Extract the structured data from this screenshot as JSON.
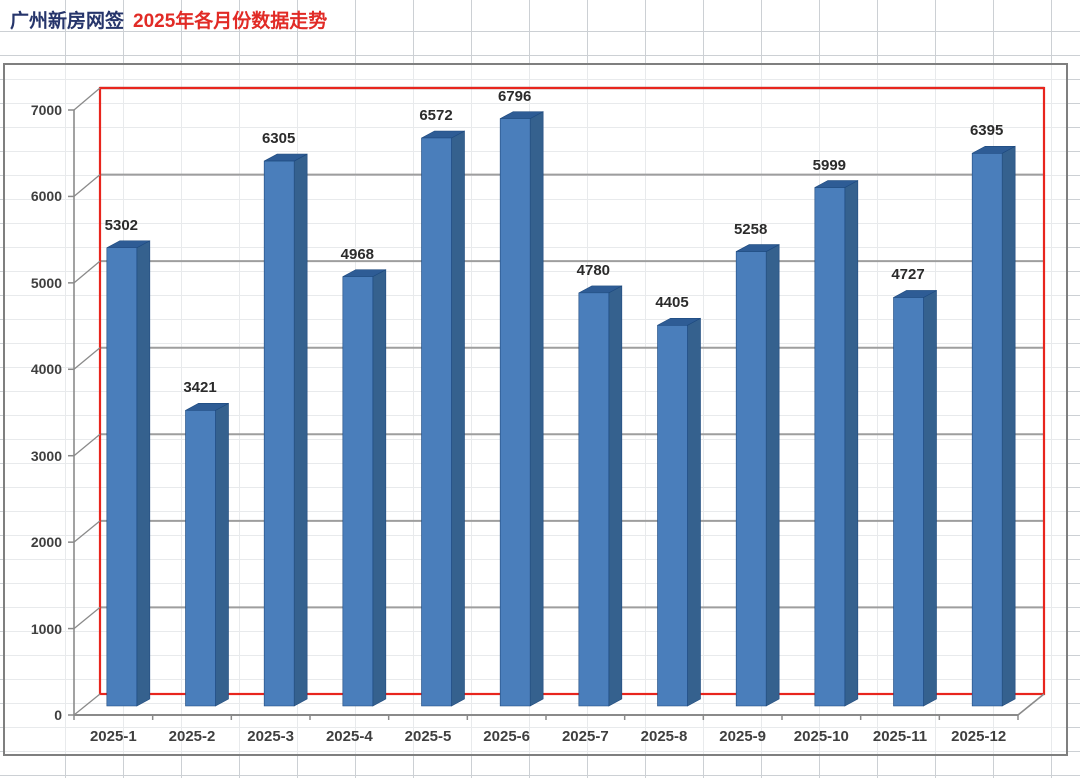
{
  "page": {
    "title_part1": "广州新房网签",
    "title_part2": "2025年各月份数据走势"
  },
  "colors": {
    "title_primary": "#26356b",
    "title_accent": "#e12b26",
    "plot_border_red": "#e8251d",
    "bar_front": "#4a7ebb",
    "bar_top": "#2e5c95",
    "bar_side": "#35618e",
    "bar_edge": "#1d497e",
    "gridline": "#9e9e9e",
    "frame_gray": "#8a8a8a",
    "label_text": "#2b2b2b",
    "axis_text": "#3f3f3f"
  },
  "chart_data": {
    "type": "bar",
    "title": "广州新房网签 2025年各月份数据走势",
    "categories": [
      "2025-1",
      "2025-2",
      "2025-3",
      "2025-4",
      "2025-5",
      "2025-6",
      "2025-7",
      "2025-8",
      "2025-9",
      "2025-10",
      "2025-11",
      "2025-12"
    ],
    "values": [
      5302,
      3421,
      6305,
      4968,
      6572,
      6796,
      4780,
      4405,
      5258,
      5999,
      4727,
      6395
    ],
    "xlabel": "",
    "ylabel": "",
    "ylim": [
      0,
      7000
    ],
    "y_ticks": [
      0,
      1000,
      2000,
      3000,
      4000,
      5000,
      6000,
      7000
    ],
    "grid": "horizontal-major",
    "legend": "none",
    "style_3d": true,
    "data_labels": "above-bars"
  }
}
